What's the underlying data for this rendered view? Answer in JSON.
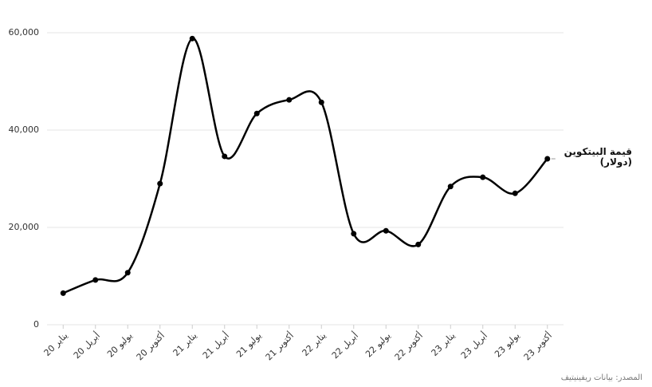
{
  "chart_data": {
    "type": "line",
    "categories": [
      "يناير 20",
      "أبريل 20",
      "يوليو 20",
      "أكتوبر 20",
      "يناير 21",
      "أبريل 21",
      "يوليو 21",
      "أكتوبر 21",
      "يناير 22",
      "أبريل 22",
      "يوليو 22",
      "أكتوبر 22",
      "يناير 23",
      "أبريل 23",
      "يوليو 23",
      "أكتوبر 23"
    ],
    "series": [
      {
        "name": "قيمة البيتكوين (دولار)",
        "color": "#000000",
        "values": [
          6500,
          9200,
          10700,
          29000,
          58800,
          34600,
          43400,
          46200,
          45700,
          18700,
          19300,
          16500,
          28400,
          30300,
          27000,
          34100
        ]
      }
    ],
    "ylim": [
      0,
      60000
    ],
    "yticks": [
      0,
      {
        "value": 20000,
        "label": "20,000"
      },
      {
        "value": 40000,
        "label": "40,000"
      },
      {
        "value": 60000,
        "label": "60,000"
      }
    ],
    "grid": true,
    "source": "المصدر: بيانات ريفينيتيف"
  }
}
